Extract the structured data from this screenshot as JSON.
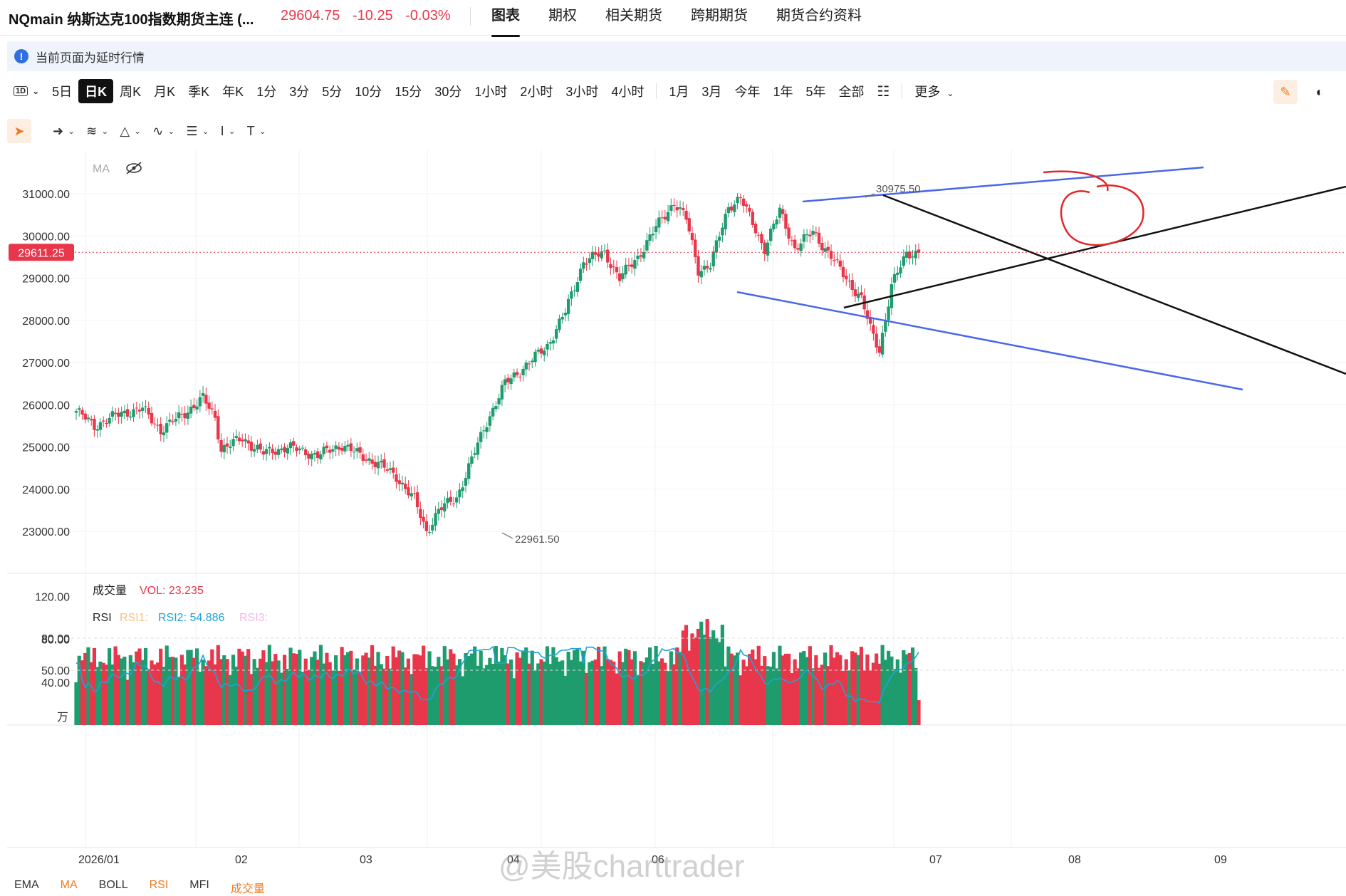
{
  "header": {
    "symbol": "NQmain 纳斯达克100指数期货主连 (...",
    "price": "29604.75",
    "change": "-10.25",
    "change_pct": "-0.03%",
    "tabs": [
      "图表",
      "期权",
      "相关期货",
      "跨期期货",
      "期货合约资料"
    ],
    "active_tab": "图表"
  },
  "notice": {
    "text": "当前页面为延时行情",
    "icon": "info-icon"
  },
  "toolbar": {
    "interval_selector": "1D",
    "periods_a": [
      "5日",
      "日K",
      "周K",
      "月K",
      "季K",
      "年K",
      "1分",
      "3分",
      "5分",
      "10分",
      "15分",
      "30分",
      "1小时",
      "2小时",
      "3小时",
      "4小时"
    ],
    "periods_b": [
      "1月",
      "3月",
      "今年",
      "1年",
      "5年",
      "全部"
    ],
    "more": "更多",
    "active_period": "日K"
  },
  "draw_tools": [
    "cursor-icon",
    "line-tool-icon",
    "fib-tool-icon",
    "pattern-tool-icon",
    "wave-tool-icon",
    "measure-tool-icon",
    "text-cursor-icon",
    "text-tool-icon"
  ],
  "colors": {
    "up": "#1f9c6e",
    "down": "#e8374b",
    "blue_line": "#4a67e8",
    "rsi": "#1fa3d6",
    "accent": "#f07a20"
  },
  "chart_data": {
    "type": "candlestick",
    "ma_label": "MA",
    "y_ticks": [
      "31000.00",
      "30000.00",
      "29000.00",
      "28000.00",
      "27000.00",
      "26000.00",
      "25000.00",
      "24000.00",
      "23000.00"
    ],
    "ylim": [
      22500,
      31500
    ],
    "current_price_label": "29611.25",
    "current_price": 29611.25,
    "high_label": "30975.50",
    "low_label": "22961.50",
    "x_labels": [
      "2026/01",
      "02",
      "03",
      "04",
      "06",
      "07",
      "08",
      "09"
    ],
    "candle_count": 216,
    "waypoints": [
      [
        0,
        25850
      ],
      [
        6,
        25500
      ],
      [
        15,
        25800
      ],
      [
        22,
        25900
      ],
      [
        28,
        25400
      ],
      [
        35,
        25750
      ],
      [
        42,
        26150
      ],
      [
        46,
        25700
      ],
      [
        48,
        24950
      ],
      [
        55,
        25200
      ],
      [
        62,
        24850
      ],
      [
        70,
        25000
      ],
      [
        80,
        24800
      ],
      [
        88,
        25050
      ],
      [
        94,
        24800
      ],
      [
        100,
        24600
      ],
      [
        106,
        24300
      ],
      [
        112,
        23750
      ],
      [
        116,
        22990
      ],
      [
        120,
        23500
      ],
      [
        126,
        23800
      ],
      [
        131,
        24700
      ],
      [
        136,
        25600
      ],
      [
        142,
        26500
      ],
      [
        150,
        27000
      ],
      [
        156,
        27400
      ],
      [
        162,
        28200
      ],
      [
        168,
        29400
      ],
      [
        175,
        29600
      ],
      [
        180,
        29000
      ],
      [
        186,
        29500
      ],
      [
        192,
        30200
      ],
      [
        198,
        30800
      ],
      [
        202,
        30400
      ],
      [
        206,
        29200
      ],
      [
        210,
        29300
      ],
      [
        216,
        30700
      ],
      [
        220,
        30900
      ],
      [
        224,
        30300
      ],
      [
        228,
        29700
      ],
      [
        233,
        30600
      ],
      [
        238,
        29700
      ],
      [
        244,
        30100
      ],
      [
        250,
        29500
      ],
      [
        256,
        28900
      ],
      [
        260,
        28500
      ],
      [
        263,
        27800
      ],
      [
        266,
        27300
      ],
      [
        270,
        28800
      ],
      [
        275,
        29600
      ],
      [
        279,
        29604
      ]
    ],
    "volume": {
      "title": "成交量",
      "vol_label": "VOL: 23.235",
      "vol_value": 23.235,
      "y_ticks": [
        "120.00",
        "80.00",
        "40.00"
      ],
      "unit": "万",
      "ylim": [
        0,
        125
      ]
    },
    "rsi": {
      "title": "RSI",
      "rsi1": "RSI1:",
      "rsi2": "RSI2: 54.886",
      "rsi2_value": 54.886,
      "rsi3": "RSI3:",
      "y_ticks": [
        "80.00",
        "50.00"
      ]
    }
  },
  "bottom_tabs": [
    "EMA",
    "MA",
    "BOLL",
    "RSI",
    "MFI",
    "成交量"
  ],
  "watermark": "@美股charttrader"
}
